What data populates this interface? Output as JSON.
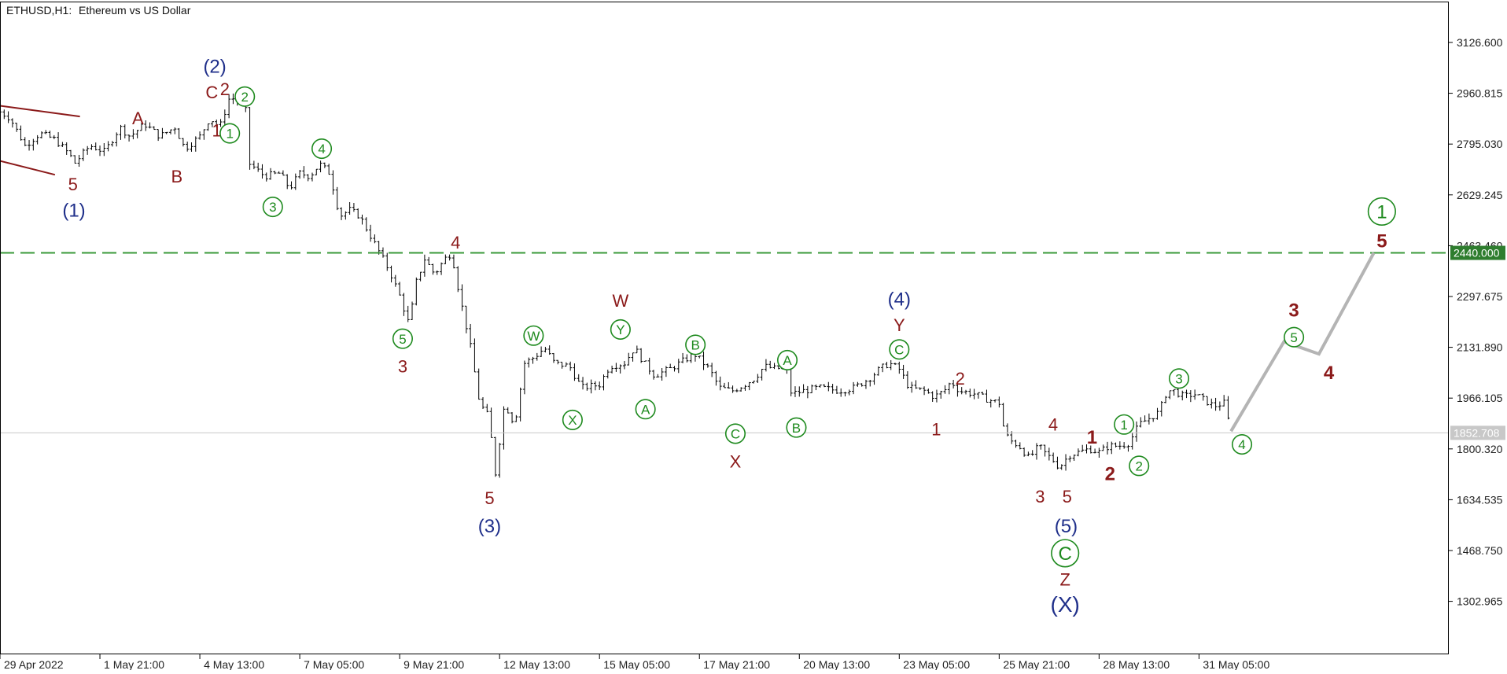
{
  "header": {
    "symbol": "ETHUSD,H1:",
    "description": "Ethereum vs US Dollar"
  },
  "colors": {
    "background": "#ffffff",
    "price_bars": "#000000",
    "dark_red": "#8b1a1a",
    "navy": "#1f2f8a",
    "green": "#1e8a1e",
    "target_line": "#3a9a3a",
    "current_line": "#c8c8c8",
    "projection": "#b4b4b4",
    "target_tag_bg": "#2e7d2e",
    "current_tag_bg": "#c8c8c8"
  },
  "price_tags": {
    "target": "2440.000",
    "current": "1852.708"
  },
  "chart_data": {
    "type": "line",
    "title": "ETHUSD,H1:  Ethereum vs US Dollar",
    "ylim": [
      1130,
      3260
    ],
    "y_ticks": [
      "3126.600",
      "2960.815",
      "2795.030",
      "2629.245",
      "2463.460",
      "2297.675",
      "2131.890",
      "1966.105",
      "1800.320",
      "1634.535",
      "1468.750",
      "1302.965"
    ],
    "x_ticks": [
      "29 Apr 2022",
      "1 May 21:00",
      "4 May 13:00",
      "7 May 05:00",
      "9 May 21:00",
      "12 May 13:00",
      "15 May 05:00",
      "17 May 21:00",
      "20 May 13:00",
      "23 May 05:00",
      "25 May 21:00",
      "28 May 13:00",
      "31 May 05:00"
    ],
    "x_range": [
      0,
      14.5
    ],
    "price_path": [
      [
        0.0,
        2900
      ],
      [
        0.1,
        2880
      ],
      [
        0.25,
        2790
      ],
      [
        0.4,
        2830
      ],
      [
        0.55,
        2810
      ],
      [
        0.7,
        2760
      ],
      [
        0.74,
        2730
      ],
      [
        0.9,
        2790
      ],
      [
        1.05,
        2770
      ],
      [
        1.2,
        2850
      ],
      [
        1.3,
        2820
      ],
      [
        1.45,
        2860
      ],
      [
        1.6,
        2820
      ],
      [
        1.75,
        2850
      ],
      [
        1.85,
        2780
      ],
      [
        2.0,
        2820
      ],
      [
        2.1,
        2880
      ],
      [
        2.2,
        2850
      ],
      [
        2.3,
        2950
      ],
      [
        2.45,
        2920
      ],
      [
        2.47,
        2880
      ],
      [
        2.5,
        2730
      ],
      [
        2.65,
        2690
      ],
      [
        2.8,
        2700
      ],
      [
        2.9,
        2650
      ],
      [
        3.0,
        2700
      ],
      [
        3.1,
        2690
      ],
      [
        3.2,
        2730
      ],
      [
        3.3,
        2700
      ],
      [
        3.4,
        2560
      ],
      [
        3.5,
        2580
      ],
      [
        3.6,
        2560
      ],
      [
        3.7,
        2500
      ],
      [
        3.8,
        2440
      ],
      [
        3.9,
        2380
      ],
      [
        4.0,
        2300
      ],
      [
        4.1,
        2200
      ],
      [
        4.15,
        2330
      ],
      [
        4.25,
        2420
      ],
      [
        4.35,
        2370
      ],
      [
        4.45,
        2420
      ],
      [
        4.52,
        2440
      ],
      [
        4.6,
        2300
      ],
      [
        4.7,
        2150
      ],
      [
        4.8,
        1950
      ],
      [
        4.9,
        1900
      ],
      [
        4.95,
        1700
      ],
      [
        5.05,
        1950
      ],
      [
        5.15,
        1880
      ],
      [
        5.25,
        2080
      ],
      [
        5.35,
        2100
      ],
      [
        5.45,
        2130
      ],
      [
        5.55,
        2080
      ],
      [
        5.7,
        2070
      ],
      [
        5.82,
        2000
      ],
      [
        6.0,
        2010
      ],
      [
        6.1,
        2070
      ],
      [
        6.25,
        2080
      ],
      [
        6.35,
        2130
      ],
      [
        6.45,
        2080
      ],
      [
        6.55,
        2040
      ],
      [
        6.7,
        2060
      ],
      [
        6.85,
        2090
      ],
      [
        6.95,
        2110
      ],
      [
        7.1,
        2060
      ],
      [
        7.2,
        2000
      ],
      [
        7.33,
        1990
      ],
      [
        7.45,
        2010
      ],
      [
        7.55,
        2030
      ],
      [
        7.65,
        2070
      ],
      [
        7.78,
        2060
      ],
      [
        7.86,
        2080
      ],
      [
        7.92,
        1980
      ],
      [
        8.05,
        1990
      ],
      [
        8.2,
        2000
      ],
      [
        8.4,
        1990
      ],
      [
        8.55,
        2000
      ],
      [
        8.7,
        2030
      ],
      [
        8.8,
        2060
      ],
      [
        8.9,
        2080
      ],
      [
        9.0,
        2060
      ],
      [
        9.1,
        2000
      ],
      [
        9.25,
        1990
      ],
      [
        9.35,
        1970
      ],
      [
        9.45,
        1990
      ],
      [
        9.52,
        2020
      ],
      [
        9.6,
        1990
      ],
      [
        9.75,
        1980
      ],
      [
        9.9,
        1960
      ],
      [
        10.0,
        1950
      ],
      [
        10.05,
        1860
      ],
      [
        10.1,
        1830
      ],
      [
        10.2,
        1810
      ],
      [
        10.3,
        1770
      ],
      [
        10.4,
        1810
      ],
      [
        10.45,
        1790
      ],
      [
        10.55,
        1760
      ],
      [
        10.6,
        1740
      ],
      [
        10.7,
        1780
      ],
      [
        10.8,
        1790
      ],
      [
        10.9,
        1800
      ],
      [
        11.0,
        1790
      ],
      [
        11.1,
        1810
      ],
      [
        11.2,
        1810
      ],
      [
        11.3,
        1820
      ],
      [
        11.4,
        1880
      ],
      [
        11.5,
        1900
      ],
      [
        11.6,
        1920
      ],
      [
        11.68,
        1990
      ],
      [
        11.75,
        1990
      ],
      [
        11.85,
        1970
      ],
      [
        11.95,
        1980
      ],
      [
        12.05,
        1960
      ],
      [
        12.15,
        1940
      ],
      [
        12.25,
        1950
      ],
      [
        12.32,
        1858
      ]
    ],
    "projection": [
      [
        12.32,
        1858
      ],
      [
        12.85,
        2150
      ],
      [
        13.2,
        2110
      ],
      [
        13.75,
        2440
      ]
    ],
    "target_level": 2440.0,
    "current_level": 1852.708,
    "channel_lines": [
      [
        [
          0.0,
          2920
        ],
        [
          0.8,
          2885
        ]
      ],
      [
        [
          0.0,
          2740
        ],
        [
          0.55,
          2695
        ]
      ]
    ],
    "annotations": [
      {
        "t": "(2)",
        "x": 2.15,
        "y": 3050,
        "c": "navy",
        "s": 24
      },
      {
        "t": "C",
        "x": 2.12,
        "y": 2965,
        "c": "dark_red",
        "s": 22
      },
      {
        "t": "2",
        "x": 2.25,
        "y": 2975,
        "c": "dark_red",
        "s": 22
      },
      {
        "t": "1",
        "x": 2.17,
        "y": 2840,
        "c": "dark_red",
        "s": 22
      },
      {
        "t": "2",
        "x": 2.45,
        "y": 2950,
        "c": "green",
        "s": 17,
        "circle": true
      },
      {
        "t": "1",
        "x": 2.3,
        "y": 2830,
        "c": "green",
        "s": 17,
        "circle": true
      },
      {
        "t": "A",
        "x": 1.38,
        "y": 2880,
        "c": "dark_red",
        "s": 22
      },
      {
        "t": "B",
        "x": 1.77,
        "y": 2690,
        "c": "dark_red",
        "s": 22
      },
      {
        "t": "5",
        "x": 0.73,
        "y": 2665,
        "c": "dark_red",
        "s": 22
      },
      {
        "t": "(1)",
        "x": 0.74,
        "y": 2580,
        "c": "navy",
        "s": 24
      },
      {
        "t": "4",
        "x": 3.22,
        "y": 2780,
        "c": "green",
        "s": 17,
        "circle": true
      },
      {
        "t": "3",
        "x": 2.73,
        "y": 2590,
        "c": "green",
        "s": 17,
        "circle": true
      },
      {
        "t": "4",
        "x": 4.56,
        "y": 2475,
        "c": "dark_red",
        "s": 22
      },
      {
        "t": "5",
        "x": 4.03,
        "y": 2160,
        "c": "green",
        "s": 17,
        "circle": true
      },
      {
        "t": "3",
        "x": 4.03,
        "y": 2070,
        "c": "dark_red",
        "s": 22
      },
      {
        "t": "5",
        "x": 4.9,
        "y": 1640,
        "c": "dark_red",
        "s": 22
      },
      {
        "t": "(3)",
        "x": 4.9,
        "y": 1550,
        "c": "navy",
        "s": 24
      },
      {
        "t": "W",
        "x": 5.34,
        "y": 2170,
        "c": "green",
        "s": 17,
        "circle": true
      },
      {
        "t": "X",
        "x": 5.73,
        "y": 1895,
        "c": "green",
        "s": 17,
        "circle": true
      },
      {
        "t": "W",
        "x": 6.21,
        "y": 2285,
        "c": "dark_red",
        "s": 22
      },
      {
        "t": "Y",
        "x": 6.21,
        "y": 2190,
        "c": "green",
        "s": 17,
        "circle": true
      },
      {
        "t": "A",
        "x": 6.46,
        "y": 1930,
        "c": "green",
        "s": 17,
        "circle": true
      },
      {
        "t": "B",
        "x": 6.96,
        "y": 2140,
        "c": "green",
        "s": 17,
        "circle": true
      },
      {
        "t": "C",
        "x": 7.36,
        "y": 1850,
        "c": "green",
        "s": 17,
        "circle": true
      },
      {
        "t": "X",
        "x": 7.36,
        "y": 1760,
        "c": "dark_red",
        "s": 22
      },
      {
        "t": "A",
        "x": 7.88,
        "y": 2090,
        "c": "green",
        "s": 17,
        "circle": true
      },
      {
        "t": "B",
        "x": 7.97,
        "y": 1870,
        "c": "green",
        "s": 17,
        "circle": true
      },
      {
        "t": "(4)",
        "x": 9.0,
        "y": 2290,
        "c": "navy",
        "s": 24
      },
      {
        "t": "Y",
        "x": 9.0,
        "y": 2205,
        "c": "dark_red",
        "s": 22
      },
      {
        "t": "C",
        "x": 9.0,
        "y": 2125,
        "c": "green",
        "s": 17,
        "circle": true
      },
      {
        "t": "2",
        "x": 9.61,
        "y": 2030,
        "c": "dark_red",
        "s": 22
      },
      {
        "t": "1",
        "x": 9.37,
        "y": 1865,
        "c": "dark_red",
        "s": 22
      },
      {
        "t": "4",
        "x": 10.54,
        "y": 1880,
        "c": "dark_red",
        "s": 22
      },
      {
        "t": "1",
        "x": 10.93,
        "y": 1840,
        "c": "dark_red",
        "s": 24,
        "w": "bold"
      },
      {
        "t": "3",
        "x": 10.41,
        "y": 1645,
        "c": "dark_red",
        "s": 22
      },
      {
        "t": "5",
        "x": 10.68,
        "y": 1645,
        "c": "dark_red",
        "s": 22
      },
      {
        "t": "2",
        "x": 11.11,
        "y": 1720,
        "c": "dark_red",
        "s": 24,
        "w": "bold"
      },
      {
        "t": "1",
        "x": 11.25,
        "y": 1880,
        "c": "green",
        "s": 17,
        "circle": true
      },
      {
        "t": "2",
        "x": 11.4,
        "y": 1745,
        "c": "green",
        "s": 17,
        "circle": true
      },
      {
        "t": "(5)",
        "x": 10.67,
        "y": 1550,
        "c": "navy",
        "s": 24
      },
      {
        "t": "C",
        "x": 10.66,
        "y": 1460,
        "c": "green",
        "s": 24,
        "circle": true
      },
      {
        "t": "Z",
        "x": 10.66,
        "y": 1375,
        "c": "dark_red",
        "s": 22
      },
      {
        "t": "(X)",
        "x": 10.66,
        "y": 1295,
        "c": "navy",
        "s": 28
      },
      {
        "t": "3",
        "x": 11.8,
        "y": 2030,
        "c": "green",
        "s": 17,
        "circle": true
      },
      {
        "t": "4",
        "x": 12.43,
        "y": 1815,
        "c": "green",
        "s": 17,
        "circle": true
      },
      {
        "t": "3",
        "x": 12.95,
        "y": 2255,
        "c": "dark_red",
        "s": 24,
        "w": "bold"
      },
      {
        "t": "5",
        "x": 12.95,
        "y": 2165,
        "c": "green",
        "s": 17,
        "circle": true
      },
      {
        "t": "4",
        "x": 13.3,
        "y": 2050,
        "c": "dark_red",
        "s": 24,
        "w": "bold"
      },
      {
        "t": "1",
        "x": 13.83,
        "y": 2575,
        "c": "green",
        "s": 24,
        "circle": true
      },
      {
        "t": "5",
        "x": 13.83,
        "y": 2480,
        "c": "dark_red",
        "s": 24,
        "w": "bold"
      }
    ]
  }
}
